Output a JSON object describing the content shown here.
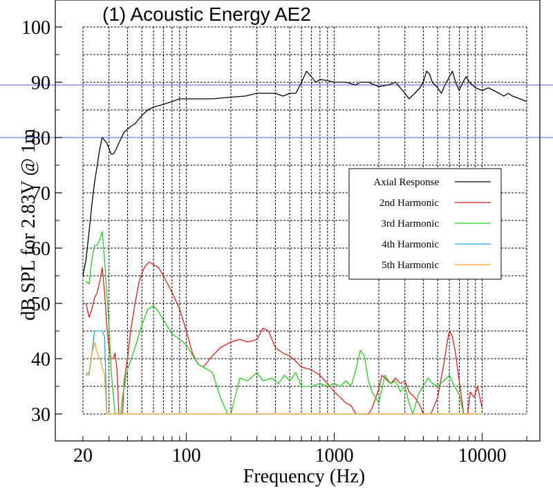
{
  "chart_data": {
    "type": "line",
    "title": "(1) Acoustic Energy AE2",
    "xlabel": "Frequency (Hz)",
    "ylabel": "dB SPL for 2.83V @ 1m",
    "x_scale": "log",
    "xlim": [
      20,
      20000
    ],
    "ylim": [
      30,
      100
    ],
    "x_tick_labels": [
      {
        "value": 20,
        "label": "20"
      },
      {
        "value": 100,
        "label": "100"
      },
      {
        "value": 1000,
        "label": "1000"
      },
      {
        "value": 10000,
        "label": "10000"
      }
    ],
    "y_ticks": [
      30,
      40,
      50,
      60,
      70,
      80,
      90,
      100
    ],
    "reference_lines": [
      89.5,
      80
    ],
    "grid": true,
    "legend_position": "right",
    "colors": {
      "reference_line": "#6a7cff",
      "grid": "#000000"
    },
    "series": [
      {
        "name": "Axial Response",
        "color": "#000000",
        "points": [
          [
            20,
            55
          ],
          [
            21,
            58
          ],
          [
            22,
            63
          ],
          [
            23,
            68
          ],
          [
            24,
            72
          ],
          [
            25,
            75
          ],
          [
            26,
            78
          ],
          [
            27,
            80
          ],
          [
            28,
            79.5
          ],
          [
            29,
            79
          ],
          [
            30,
            78
          ],
          [
            31,
            77
          ],
          [
            32,
            77
          ],
          [
            33,
            77.5
          ],
          [
            35,
            79
          ],
          [
            38,
            81
          ],
          [
            42,
            82
          ],
          [
            45,
            82.5
          ],
          [
            50,
            84
          ],
          [
            55,
            85
          ],
          [
            60,
            85.5
          ],
          [
            70,
            86
          ],
          [
            80,
            86.5
          ],
          [
            90,
            87
          ],
          [
            100,
            87
          ],
          [
            120,
            87
          ],
          [
            150,
            87
          ],
          [
            200,
            87.3
          ],
          [
            250,
            87.5
          ],
          [
            300,
            88
          ],
          [
            350,
            88
          ],
          [
            400,
            88
          ],
          [
            450,
            87.5
          ],
          [
            500,
            88
          ],
          [
            550,
            88
          ],
          [
            600,
            90
          ],
          [
            650,
            92
          ],
          [
            700,
            91
          ],
          [
            750,
            90
          ],
          [
            800,
            90.5
          ],
          [
            900,
            90.3
          ],
          [
            1000,
            90
          ],
          [
            1200,
            90
          ],
          [
            1400,
            89.5
          ],
          [
            1500,
            90
          ],
          [
            1700,
            90
          ],
          [
            2000,
            89.2
          ],
          [
            2300,
            89.5
          ],
          [
            2600,
            90
          ],
          [
            3000,
            88
          ],
          [
            3200,
            87
          ],
          [
            3500,
            88
          ],
          [
            3800,
            89
          ],
          [
            4000,
            90
          ],
          [
            4200,
            92
          ],
          [
            4400,
            91.5
          ],
          [
            4600,
            90
          ],
          [
            5000,
            89
          ],
          [
            5300,
            88
          ],
          [
            5600,
            89.5
          ],
          [
            6000,
            91
          ],
          [
            6300,
            92
          ],
          [
            6600,
            90
          ],
          [
            7000,
            88.5
          ],
          [
            7400,
            90
          ],
          [
            7800,
            91
          ],
          [
            8200,
            90
          ],
          [
            9000,
            89
          ],
          [
            10000,
            88.5
          ],
          [
            11000,
            89
          ],
          [
            12000,
            88.5
          ],
          [
            13000,
            88
          ],
          [
            14000,
            87.5
          ],
          [
            15000,
            88
          ],
          [
            16000,
            87.5
          ],
          [
            18000,
            87
          ],
          [
            20000,
            86.5
          ]
        ]
      },
      {
        "name": "2nd Harmonic",
        "color": "#dd1f1f",
        "points": [
          [
            21,
            50
          ],
          [
            22,
            47.5
          ],
          [
            23,
            49
          ],
          [
            24,
            51
          ],
          [
            25,
            52
          ],
          [
            26,
            54
          ],
          [
            27,
            56.5
          ],
          [
            28,
            52
          ],
          [
            29,
            46
          ],
          [
            30,
            42
          ],
          [
            31,
            40
          ],
          [
            32,
            40
          ],
          [
            33,
            41
          ],
          [
            34,
            38
          ],
          [
            35,
            30
          ],
          [
            37,
            30
          ],
          [
            38,
            36
          ],
          [
            40,
            40
          ],
          [
            42,
            45
          ],
          [
            45,
            50
          ],
          [
            48,
            54
          ],
          [
            52,
            56.5
          ],
          [
            56,
            57.5
          ],
          [
            60,
            57
          ],
          [
            65,
            56.5
          ],
          [
            70,
            55
          ],
          [
            80,
            52
          ],
          [
            90,
            49
          ],
          [
            100,
            45
          ],
          [
            110,
            41
          ],
          [
            120,
            39
          ],
          [
            130,
            38.5
          ],
          [
            150,
            40.5
          ],
          [
            170,
            42
          ],
          [
            200,
            43
          ],
          [
            230,
            43.5
          ],
          [
            260,
            43
          ],
          [
            300,
            43.5
          ],
          [
            330,
            45.5
          ],
          [
            360,
            45
          ],
          [
            400,
            42
          ],
          [
            450,
            41
          ],
          [
            500,
            40.5
          ],
          [
            550,
            39.5
          ],
          [
            600,
            38.5
          ],
          [
            700,
            38
          ],
          [
            800,
            37
          ],
          [
            900,
            35.5
          ],
          [
            1000,
            34
          ],
          [
            1100,
            33
          ],
          [
            1200,
            32
          ],
          [
            1300,
            31.5
          ],
          [
            1400,
            30
          ],
          [
            1500,
            30
          ],
          [
            1700,
            30
          ],
          [
            1800,
            31
          ],
          [
            2000,
            34.5
          ],
          [
            2100,
            37
          ],
          [
            2200,
            36.5
          ],
          [
            2400,
            35.5
          ],
          [
            2600,
            36.5
          ],
          [
            2800,
            35.5
          ],
          [
            3000,
            36
          ],
          [
            3200,
            34
          ],
          [
            3500,
            33
          ],
          [
            3800,
            31.5
          ],
          [
            4000,
            30
          ],
          [
            4500,
            30
          ],
          [
            5000,
            33
          ],
          [
            5500,
            39
          ],
          [
            5800,
            43
          ],
          [
            6000,
            45
          ],
          [
            6300,
            44
          ],
          [
            6600,
            41
          ],
          [
            7000,
            36
          ],
          [
            7500,
            30
          ],
          [
            8000,
            30
          ],
          [
            8300,
            34
          ],
          [
            8800,
            33
          ],
          [
            9300,
            35
          ],
          [
            10000,
            31
          ]
        ]
      },
      {
        "name": "3rd Harmonic",
        "color": "#22cc22",
        "points": [
          [
            21,
            54
          ],
          [
            22,
            53.5
          ],
          [
            23,
            58
          ],
          [
            24,
            60.5
          ],
          [
            25,
            60.5
          ],
          [
            26,
            61.5
          ],
          [
            27,
            63
          ],
          [
            28,
            58
          ],
          [
            29,
            52
          ],
          [
            30,
            46
          ],
          [
            31,
            38
          ],
          [
            33,
            30
          ],
          [
            35,
            30
          ],
          [
            36,
            30
          ],
          [
            37,
            33
          ],
          [
            40,
            38
          ],
          [
            45,
            42
          ],
          [
            50,
            46
          ],
          [
            55,
            49
          ],
          [
            60,
            49.5
          ],
          [
            65,
            48.5
          ],
          [
            70,
            47
          ],
          [
            80,
            44.5
          ],
          [
            90,
            43.5
          ],
          [
            100,
            42.5
          ],
          [
            120,
            39
          ],
          [
            140,
            38
          ],
          [
            150,
            37.5
          ],
          [
            170,
            33
          ],
          [
            190,
            30
          ],
          [
            200,
            30
          ],
          [
            230,
            36.5
          ],
          [
            260,
            36
          ],
          [
            300,
            37.5
          ],
          [
            330,
            36
          ],
          [
            380,
            36.5
          ],
          [
            420,
            35.5
          ],
          [
            460,
            37
          ],
          [
            500,
            36
          ],
          [
            550,
            37.5
          ],
          [
            600,
            35
          ],
          [
            700,
            35
          ],
          [
            800,
            35.5
          ],
          [
            900,
            35
          ],
          [
            1000,
            35.5
          ],
          [
            1100,
            35
          ],
          [
            1200,
            36
          ],
          [
            1300,
            35
          ],
          [
            1400,
            38
          ],
          [
            1500,
            41.5
          ],
          [
            1600,
            40.5
          ],
          [
            1700,
            36
          ],
          [
            1800,
            34
          ],
          [
            2000,
            32
          ],
          [
            2200,
            37
          ],
          [
            2400,
            35.5
          ],
          [
            2600,
            36
          ],
          [
            2800,
            34
          ],
          [
            3000,
            35
          ],
          [
            3200,
            32
          ],
          [
            3400,
            30
          ],
          [
            3700,
            33.5
          ],
          [
            4000,
            35
          ],
          [
            4300,
            36.5
          ],
          [
            4600,
            35.5
          ],
          [
            5000,
            35
          ],
          [
            5500,
            36
          ],
          [
            6000,
            37
          ],
          [
            6500,
            35
          ],
          [
            7000,
            33.5
          ],
          [
            7500,
            30
          ]
        ]
      },
      {
        "name": "4th Harmonic",
        "color": "#1aa6e6",
        "points": [
          [
            21,
            37
          ],
          [
            22,
            37.5
          ],
          [
            23,
            41
          ],
          [
            24,
            45
          ],
          [
            25,
            45
          ],
          [
            26,
            45
          ],
          [
            27,
            45
          ],
          [
            28,
            44
          ],
          [
            29,
            30
          ],
          [
            40,
            30
          ],
          [
            100,
            30
          ],
          [
            1000,
            30
          ],
          [
            10000,
            30
          ]
        ]
      },
      {
        "name": "5th Harmonic",
        "color": "#f5a623",
        "points": [
          [
            21,
            37.5
          ],
          [
            22,
            37
          ],
          [
            23,
            41
          ],
          [
            24,
            43
          ],
          [
            25,
            41
          ],
          [
            26,
            40
          ],
          [
            27,
            38.5
          ],
          [
            28,
            37
          ],
          [
            29,
            30
          ],
          [
            40,
            30
          ],
          [
            100,
            30
          ],
          [
            1000,
            30
          ],
          [
            10000,
            30
          ]
        ]
      }
    ]
  }
}
